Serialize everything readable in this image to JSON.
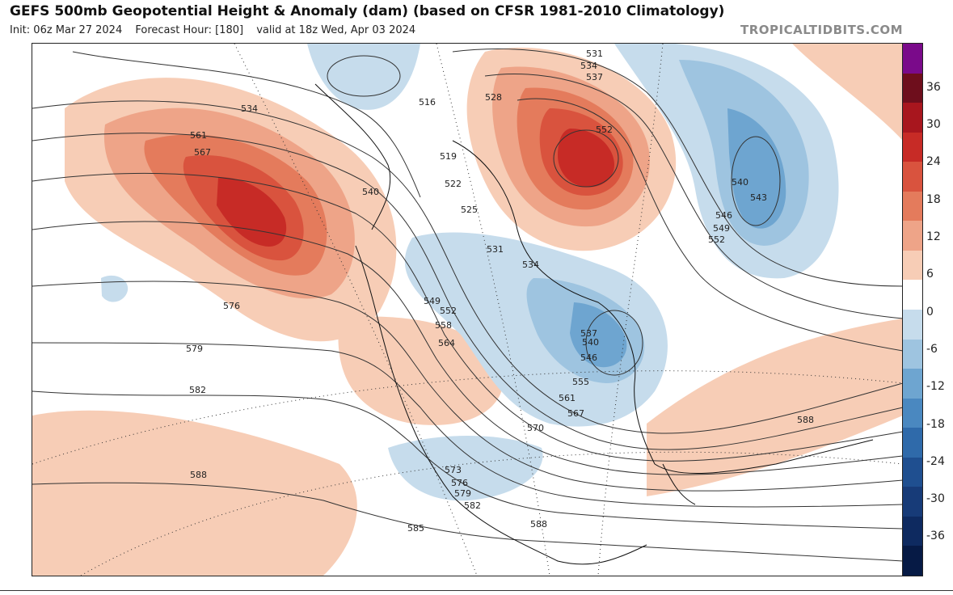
{
  "header": {
    "title": "GEFS 500mb Geopotential Height & Anomaly (dam) (based on CFSR 1981-2010 Climatology)",
    "init": "Init: 06z Mar 27 2024",
    "forecast_hour": "Forecast Hour: [180]",
    "valid": "valid at 18z Wed, Apr 03 2024",
    "brand": "TROPICALTIDBITS.COM"
  },
  "colorbar": {
    "ticks": [
      "36",
      "30",
      "24",
      "18",
      "12",
      "6",
      "0",
      "-6",
      "-12",
      "-18",
      "-24",
      "-30",
      "-36"
    ],
    "colors": [
      "#7a0a8a",
      "#6e0e1c",
      "#a8161e",
      "#c72b26",
      "#d9533e",
      "#e47b5c",
      "#eea488",
      "#f7cdb6",
      "#ffffff",
      "#c6dcec",
      "#9ec4e0",
      "#6ea5d0",
      "#4a88c0",
      "#2f6aaa",
      "#1f4f90",
      "#173b78",
      "#0e2a60",
      "#061a45"
    ]
  },
  "contour_labels": [
    "531",
    "534",
    "537",
    "528",
    "552",
    "516",
    "519",
    "522",
    "525",
    "531",
    "534",
    "540",
    "543",
    "546",
    "549",
    "552",
    "534",
    "561",
    "567",
    "540",
    "549",
    "552",
    "558",
    "564",
    "537",
    "540",
    "546",
    "555",
    "561",
    "567",
    "570",
    "576",
    "579",
    "582",
    "588",
    "573",
    "576",
    "579",
    "582",
    "585",
    "588",
    "588"
  ],
  "map": {
    "description_icons": [
      "height-contours",
      "anomaly-shading",
      "coastlines"
    ]
  }
}
